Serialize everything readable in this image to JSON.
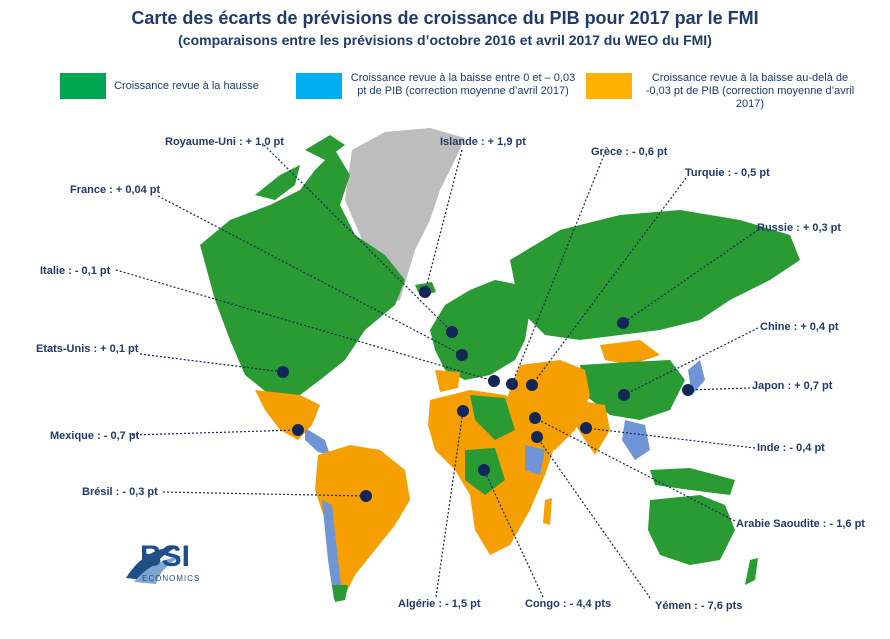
{
  "title": "Carte des écarts de prévisions de croissance du PIB pour 2017 par le FMI",
  "subtitle": "(comparaisons entre les prévisions d’octobre 2016 et avril 2017 du WEO du FMI)",
  "legend": [
    {
      "text": "Croissance revue à la hausse",
      "color": "#00a651"
    },
    {
      "text": "Croissance revue à la baisse entre 0 et – 0,03 pt de PIB (correction moyenne d’avril 2017)",
      "color": "#00aeef"
    },
    {
      "text": "Croissance revue à la baisse au-delà de -0,03 pt de PIB (correction moyenne d’avril 2017)",
      "color": "#ffb300"
    }
  ],
  "colors": {
    "up": "#2a9a32",
    "small_down": "#6f95d6",
    "big_down": "#f5a000",
    "no_data": "#bdbdbd",
    "marker": "#13265a"
  },
  "labels": {
    "royaume_uni": "Royaume-Uni : + 1,0 pt",
    "islande": "Islande : + 1,9 pt",
    "grece": "Grèce : - 0,6 pt",
    "turquie": "Turquie : - 0,5 pt",
    "france": "France : + 0,04 pt",
    "russie": "Russie : + 0,3 pt",
    "italie": "Italie : - 0,1 pt",
    "chine": "Chine : + 0,4 pt",
    "etats_unis": "Etats-Unis : + 0,1 pt",
    "japon": "Japon : + 0,7 pt",
    "mexique": "Mexique : - 0,7 pt",
    "inde": "Inde : - 0,4 pt",
    "bresil": "Brésil : - 0,3 pt",
    "arabie": "Arabie Saoudite : - 1,6 pt",
    "algerie": "Algérie : - 1,5 pt",
    "congo": "Congo : - 4,4 pts",
    "yemen": "Yémen : - 7,6 pts"
  },
  "logo": {
    "name": "BSI",
    "sub": "ECONOMICS"
  }
}
